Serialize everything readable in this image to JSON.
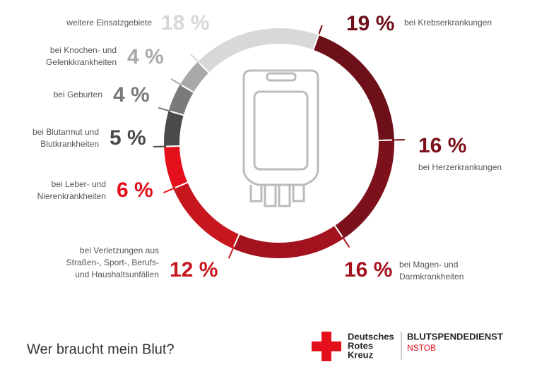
{
  "chart_data": {
    "type": "donut",
    "title": "Wer braucht mein Blut?",
    "categories": [
      [
        "bei Krebserkrankungen"
      ],
      [
        "bei Herzerkrankungen"
      ],
      [
        "bei Magen- und",
        "Darmkrankheiten"
      ],
      [
        "bei Verletzungen aus",
        "Straßen-, Sport-, Berufs-",
        "und Haushaltsunfällen"
      ],
      [
        "bei Leber- und",
        "Nierenkrankheiten"
      ],
      [
        "bei Blutarmut und",
        "Blutkrankheiten"
      ],
      [
        "bei Geburten"
      ],
      [
        "bei Knochen- und",
        "Gelenkkrankheiten"
      ],
      [
        "weitere Einsatzgebiete"
      ]
    ],
    "values": [
      19,
      16,
      16,
      12,
      6,
      5,
      4,
      4,
      18
    ],
    "value_labels": [
      "19 %",
      "16 %",
      "16 %",
      "12 %",
      "6 %",
      "5 %",
      "4 %",
      "4 %",
      "18 %"
    ],
    "colors": [
      "#6e1019",
      "#7c111b",
      "#a3131f",
      "#c8161f",
      "#e3101c",
      "#4a4a4a",
      "#7a7a7a",
      "#a9a9a9",
      "#d8d8d8"
    ]
  },
  "logo": {
    "name": [
      "Deutsches",
      "Rotes",
      "Kreuz"
    ],
    "service": "BLUTSPENDEDIENST",
    "region": "NSTOB"
  }
}
